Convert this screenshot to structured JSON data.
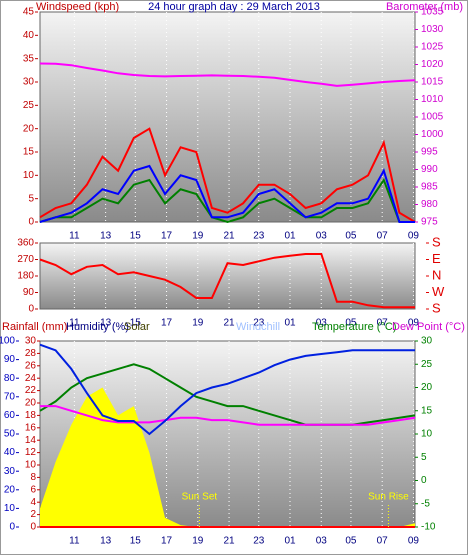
{
  "chart_data": [
    {
      "type": "line",
      "labels": [
        {
          "text": "Windspeed (kph)",
          "color": "#c00000"
        },
        {
          "text": "24 hour graph day : 29 March 2013",
          "color": "#0000a0"
        },
        {
          "text": "Barometer (mb)",
          "color": "#d000d0"
        }
      ],
      "x": [
        0,
        1,
        2,
        3,
        4,
        5,
        6,
        7,
        8,
        9,
        10,
        11,
        12,
        13,
        14,
        15,
        16,
        17,
        18,
        19,
        20,
        21,
        22,
        23,
        24
      ],
      "xlim": [
        0,
        24
      ],
      "xticks": [
        {
          "value": 2.2,
          "label": "11"
        },
        {
          "value": 4.2,
          "label": "13"
        },
        {
          "value": 6.1,
          "label": "15"
        },
        {
          "value": 8.1,
          "label": "17"
        },
        {
          "value": 10.1,
          "label": "19"
        },
        {
          "value": 12.1,
          "label": "21"
        },
        {
          "value": 14.0,
          "label": "23"
        },
        {
          "value": 16.0,
          "label": "01"
        },
        {
          "value": 18.0,
          "label": "03"
        },
        {
          "value": 19.9,
          "label": "05"
        },
        {
          "value": 21.9,
          "label": "07"
        },
        {
          "value": 23.9,
          "label": "09"
        }
      ],
      "ylim": [
        0,
        45
      ],
      "yticks": [
        0,
        5,
        10,
        15,
        20,
        25,
        30,
        35,
        40,
        45
      ],
      "ytick_color": "#c00000",
      "y2lim": [
        975,
        1035
      ],
      "y2ticks": [
        975,
        980,
        985,
        990,
        995,
        1000,
        1005,
        1010,
        1015,
        1020,
        1025,
        1030,
        1035
      ],
      "y2tick_color": "#d000d0",
      "series": [
        {
          "color": "#ff0000",
          "values": [
            1,
            3,
            4,
            8,
            14,
            11,
            18,
            20,
            10,
            16,
            15,
            3,
            2,
            4,
            8,
            8,
            6,
            3,
            4,
            7,
            8,
            10,
            17,
            2,
            0
          ]
        },
        {
          "color": "#008000",
          "values": [
            0,
            1,
            1,
            3,
            5,
            4,
            8,
            9,
            4,
            7,
            6,
            1,
            0,
            1,
            4,
            5,
            3,
            1,
            1,
            3,
            3,
            4,
            9,
            0,
            0
          ]
        },
        {
          "color": "#0000ff",
          "values": [
            0,
            1,
            2,
            4,
            7,
            6,
            11,
            12,
            6,
            10,
            9,
            1,
            1,
            2,
            6,
            7,
            4,
            1,
            2,
            4,
            4,
            5,
            11,
            0,
            0
          ]
        },
        {
          "color": "#ff00ff",
          "axis": "y2",
          "values": [
            1020.3,
            1020.2,
            1019.8,
            1019.0,
            1018.3,
            1017.5,
            1017.0,
            1016.7,
            1016.6,
            1016.7,
            1016.8,
            1016.9,
            1016.8,
            1016.7,
            1016.5,
            1016.2,
            1015.6,
            1015.0,
            1014.5,
            1013.9,
            1014.2,
            1014.6,
            1015.0,
            1015.3,
            1015.5
          ]
        }
      ]
    },
    {
      "type": "line",
      "x": [
        0,
        1,
        2,
        3,
        4,
        5,
        6,
        7,
        8,
        9,
        10,
        11,
        12,
        13,
        14,
        15,
        16,
        17,
        18,
        19,
        20,
        21,
        22,
        23,
        24
      ],
      "xlim": [
        0,
        24
      ],
      "xticks": [
        {
          "value": 2.2,
          "label": "11"
        },
        {
          "value": 4.2,
          "label": "13"
        },
        {
          "value": 6.1,
          "label": "15"
        },
        {
          "value": 8.1,
          "label": "17"
        },
        {
          "value": 10.1,
          "label": "19"
        },
        {
          "value": 12.1,
          "label": "21"
        },
        {
          "value": 14.0,
          "label": "23"
        },
        {
          "value": 16.0,
          "label": "01"
        },
        {
          "value": 18.0,
          "label": "03"
        },
        {
          "value": 19.9,
          "label": "05"
        },
        {
          "value": 21.9,
          "label": "07"
        },
        {
          "value": 23.9,
          "label": "09"
        }
      ],
      "ylim": [
        0,
        360
      ],
      "yticks": [
        0,
        90,
        180,
        270,
        360
      ],
      "ytick_color": "#c00000",
      "y2lim": [
        0,
        360
      ],
      "y2ticks": [
        {
          "value": 360,
          "label": "S"
        },
        {
          "value": 270,
          "label": "E"
        },
        {
          "value": 180,
          "label": "N"
        },
        {
          "value": 90,
          "label": "W"
        },
        {
          "value": 0,
          "label": "S"
        }
      ],
      "y2tick_color": "#e00000",
      "series": [
        {
          "color": "#ff0000",
          "values": [
            270,
            240,
            190,
            230,
            240,
            190,
            200,
            180,
            160,
            120,
            60,
            60,
            250,
            240,
            260,
            280,
            290,
            300,
            300,
            40,
            40,
            20,
            10,
            10,
            10
          ]
        }
      ]
    },
    {
      "type": "line",
      "labels": [
        {
          "text": "Rainfall (mm)",
          "color": "#c00000"
        },
        {
          "text": "Humidity (%)",
          "color": "#000080"
        },
        {
          "text": "Solar",
          "color": "#404000"
        },
        {
          "text": "Windchill",
          "color": "#a0c0ff"
        },
        {
          "text": "Temperature (°C)",
          "color": "#008000"
        },
        {
          "text": "Dew Point (°C)",
          "color": "#d000d0"
        }
      ],
      "x": [
        0,
        1,
        2,
        3,
        4,
        5,
        6,
        7,
        8,
        9,
        10,
        11,
        12,
        13,
        14,
        15,
        16,
        17,
        18,
        19,
        20,
        21,
        22,
        23,
        24
      ],
      "xlim": [
        0,
        24
      ],
      "xticks": [
        {
          "value": 2.2,
          "label": "11"
        },
        {
          "value": 4.2,
          "label": "13"
        },
        {
          "value": 6.1,
          "label": "15"
        },
        {
          "value": 8.1,
          "label": "17"
        },
        {
          "value": 10.1,
          "label": "19"
        },
        {
          "value": 12.1,
          "label": "21"
        },
        {
          "value": 14.0,
          "label": "23"
        },
        {
          "value": 16.0,
          "label": "01"
        },
        {
          "value": 18.0,
          "label": "03"
        },
        {
          "value": 19.9,
          "label": "05"
        },
        {
          "value": 21.9,
          "label": "07"
        },
        {
          "value": 23.9,
          "label": "09"
        }
      ],
      "ylim": [
        0,
        100
      ],
      "yticks": [
        0,
        10,
        20,
        30,
        40,
        50,
        60,
        70,
        80,
        90,
        100
      ],
      "ytick_color": "#0000c0",
      "y3lim": [
        0,
        30
      ],
      "y3ticks": [
        0,
        2,
        4,
        6,
        8,
        10,
        12,
        14,
        16,
        18,
        20,
        22,
        24,
        26,
        28,
        30
      ],
      "y3tick_color": "#c00000",
      "y2lim": [
        -10,
        30
      ],
      "y2ticks": [
        -10,
        -5,
        0,
        5,
        10,
        15,
        20,
        25,
        30
      ],
      "y2tick_color": "#008000",
      "annotations": [
        {
          "text": "Sun Set",
          "x": 10.2
        },
        {
          "text": "Sun Rise",
          "x": 22.3
        }
      ],
      "series": [
        {
          "color": "#ffff00",
          "style": "area",
          "values": [
            10,
            35,
            55,
            70,
            75,
            60,
            65,
            40,
            5,
            1,
            0,
            0,
            0,
            0,
            0,
            0,
            0,
            0,
            0,
            0,
            0,
            0,
            0,
            0,
            2
          ]
        },
        {
          "color": "#ff0000",
          "axis": "y3",
          "values": [
            0,
            0,
            0,
            0,
            0,
            0,
            0,
            0,
            0,
            0,
            0,
            0,
            0,
            0,
            0,
            0,
            0,
            0,
            0,
            0,
            0,
            0,
            0,
            0,
            0
          ]
        },
        {
          "color": "#008000",
          "axis": "y2",
          "values": [
            15,
            17,
            20,
            22,
            23,
            24,
            25,
            24,
            22,
            20,
            18,
            17,
            16,
            16,
            15,
            14,
            13,
            12,
            12,
            12,
            12,
            12.5,
            13,
            13.5,
            14
          ]
        },
        {
          "color": "#ff00ff",
          "axis": "y2",
          "values": [
            16,
            16,
            15,
            14,
            13,
            12.5,
            12.5,
            12.5,
            13,
            13.5,
            13.5,
            13,
            13,
            12.5,
            12,
            12,
            12,
            12,
            12,
            12,
            12,
            12,
            12.5,
            13,
            13.5
          ]
        },
        {
          "color": "#0020e0",
          "values": [
            98,
            95,
            85,
            72,
            60,
            57,
            57,
            50,
            57,
            65,
            72,
            75,
            77,
            80,
            83,
            87,
            90,
            92,
            93,
            94,
            95,
            95,
            95,
            95,
            95
          ]
        }
      ]
    }
  ]
}
